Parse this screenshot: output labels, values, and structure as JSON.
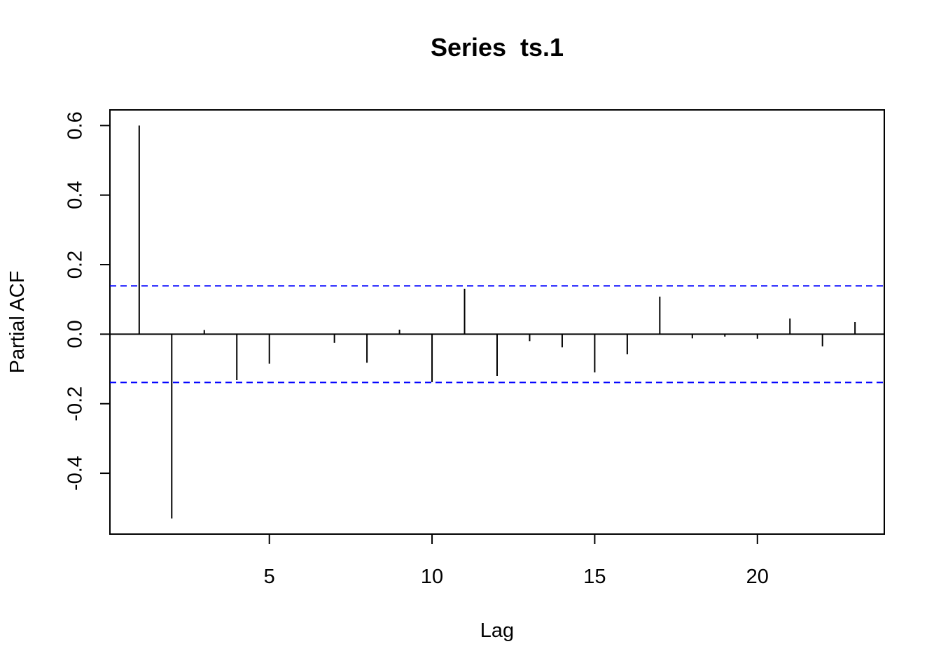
{
  "chart_data": {
    "type": "bar",
    "subtype": "pacf-spikes",
    "title": "Series  ts.1",
    "xlabel": "Lag",
    "ylabel": "Partial ACF",
    "xlim": [
      0.1,
      23.9
    ],
    "ylim": [
      -0.575,
      0.645
    ],
    "x_ticks": [
      5,
      10,
      15,
      20
    ],
    "y_ticks": [
      -0.4,
      -0.2,
      0.0,
      0.2,
      0.4,
      0.6
    ],
    "y_tick_labels": [
      "-0.4",
      "-0.2",
      "0.0",
      "0.2",
      "0.4",
      "0.6"
    ],
    "lags": [
      1,
      2,
      3,
      4,
      5,
      6,
      7,
      8,
      9,
      10,
      11,
      12,
      13,
      14,
      15,
      16,
      17,
      18,
      19,
      20,
      21,
      22,
      23
    ],
    "values": [
      0.6,
      -0.53,
      0.012,
      -0.132,
      -0.085,
      0.0,
      -0.025,
      -0.082,
      0.013,
      -0.138,
      0.13,
      -0.12,
      -0.02,
      -0.038,
      -0.11,
      -0.058,
      0.108,
      -0.012,
      -0.007,
      -0.013,
      0.045,
      -0.035,
      0.035
    ],
    "confidence_bound": 0.139,
    "colors": {
      "spikes": "#000000",
      "confidence": "#0000ff",
      "zero_line": "#000000"
    }
  }
}
